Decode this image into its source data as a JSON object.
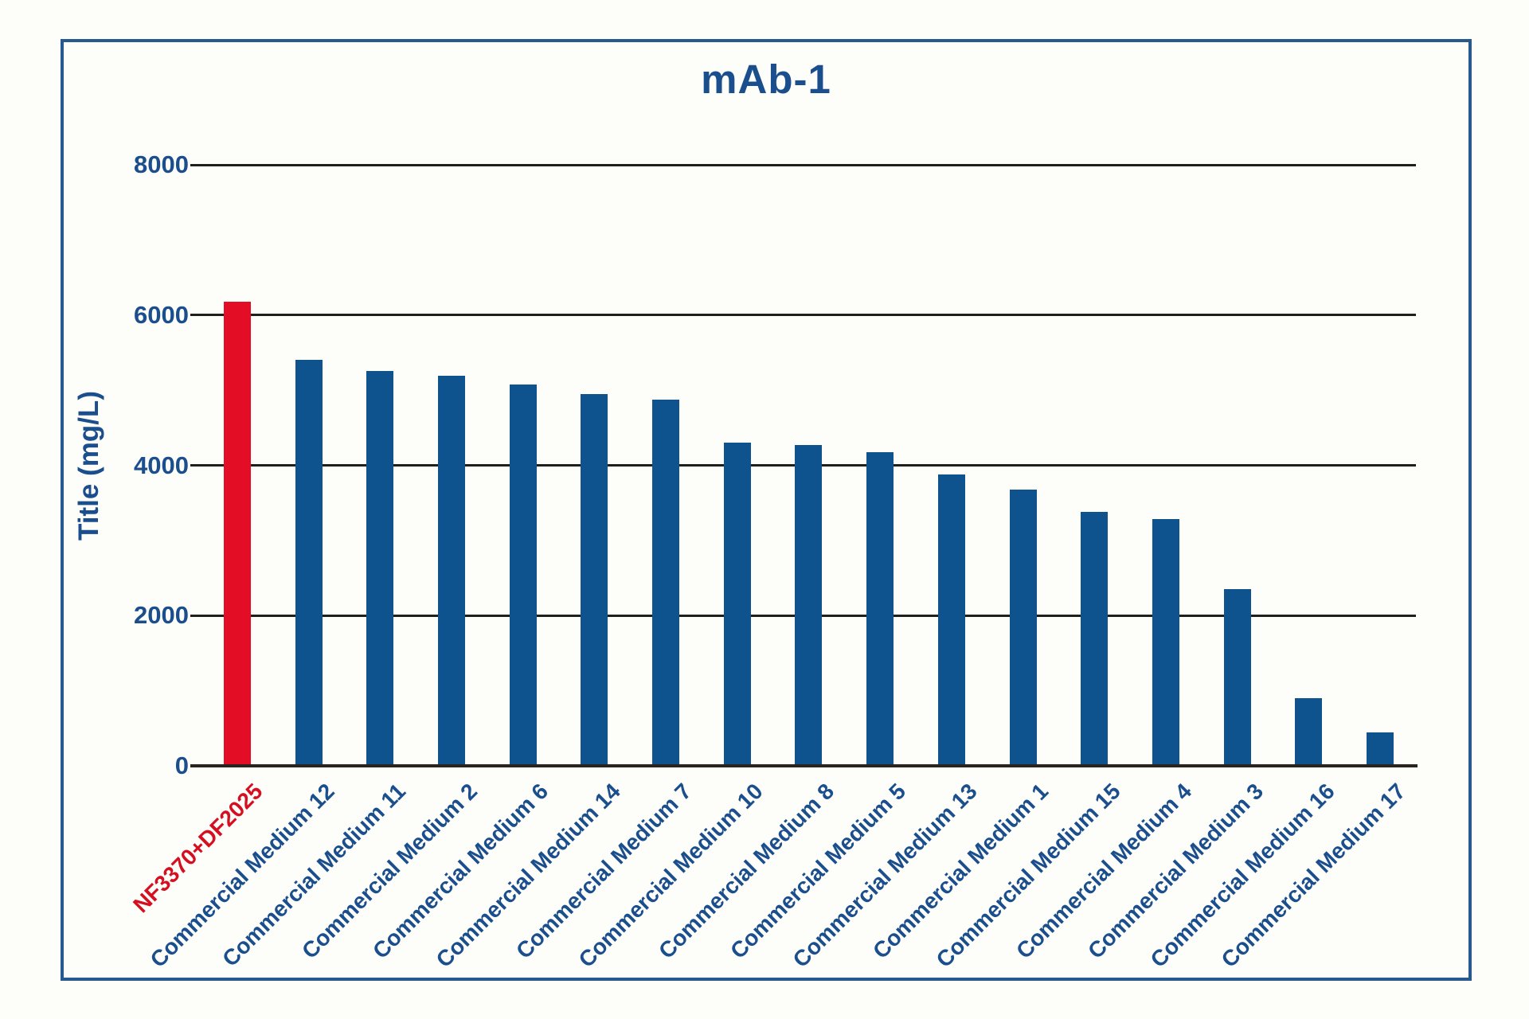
{
  "page": {
    "background": "#fdfdfa",
    "frame_border_color": "#27598f"
  },
  "chart_data": {
    "type": "bar",
    "title": "mAb-1",
    "xlabel": "",
    "ylabel": "Title (mg/L)",
    "ylim": [
      0,
      8000
    ],
    "yticks": [
      8000,
      6000,
      4000,
      2000,
      0
    ],
    "grid": "horizontal gridlines at each y tick, drawn behind bars",
    "legend_position": "none",
    "x_tick_rotation_deg": 45,
    "default_bar_color": "#0f538e",
    "highlight_bar_color": "#e30d25",
    "categories": [
      "NF3370+DF2025",
      "Commercial Medium 12",
      "Commercial Medium 11",
      "Commercial Medium 2",
      "Commercial Medium 6",
      "Commercial Medium 14",
      "Commercial Medium 7",
      "Commercial Medium 10",
      "Commercial Medium 8",
      "Commercial Medium 5",
      "Commercial Medium 13",
      "Commercial Medium 1",
      "Commercial Medium 15",
      "Commercial Medium 4",
      "Commercial Medium 3",
      "Commercial Medium 16",
      "Commercial Medium 17"
    ],
    "values": [
      6180,
      5400,
      5260,
      5190,
      5080,
      4950,
      4870,
      4300,
      4270,
      4170,
      3880,
      3680,
      3380,
      3290,
      2350,
      900,
      450
    ],
    "bars": [
      {
        "label": "NF3370+DF2025",
        "value": 6180,
        "color": "#e30d25",
        "label_color": "#d50f20"
      },
      {
        "label": "Commercial Medium 12",
        "value": 5400,
        "color": "#0f538e",
        "label_color": "#1a4e8c"
      },
      {
        "label": "Commercial Medium 11",
        "value": 5260,
        "color": "#0f538e",
        "label_color": "#1a4e8c"
      },
      {
        "label": "Commercial Medium 2",
        "value": 5190,
        "color": "#0f538e",
        "label_color": "#1a4e8c"
      },
      {
        "label": "Commercial Medium 6",
        "value": 5080,
        "color": "#0f538e",
        "label_color": "#1a4e8c"
      },
      {
        "label": "Commercial Medium 14",
        "value": 4950,
        "color": "#0f538e",
        "label_color": "#1a4e8c"
      },
      {
        "label": "Commercial Medium 7",
        "value": 4870,
        "color": "#0f538e",
        "label_color": "#1a4e8c"
      },
      {
        "label": "Commercial Medium 10",
        "value": 4300,
        "color": "#0f538e",
        "label_color": "#1a4e8c"
      },
      {
        "label": "Commercial Medium 8",
        "value": 4270,
        "color": "#0f538e",
        "label_color": "#1a4e8c"
      },
      {
        "label": "Commercial Medium 5",
        "value": 4170,
        "color": "#0f538e",
        "label_color": "#1a4e8c"
      },
      {
        "label": "Commercial Medium 13",
        "value": 3880,
        "color": "#0f538e",
        "label_color": "#1a4e8c"
      },
      {
        "label": "Commercial Medium 1",
        "value": 3680,
        "color": "#0f538e",
        "label_color": "#1a4e8c"
      },
      {
        "label": "Commercial Medium 15",
        "value": 3380,
        "color": "#0f538e",
        "label_color": "#1a4e8c"
      },
      {
        "label": "Commercial Medium 4",
        "value": 3290,
        "color": "#0f538e",
        "label_color": "#1a4e8c"
      },
      {
        "label": "Commercial Medium 3",
        "value": 2350,
        "color": "#0f538e",
        "label_color": "#1a4e8c"
      },
      {
        "label": "Commercial Medium 16",
        "value": 900,
        "color": "#0f538e",
        "label_color": "#1a4e8c"
      },
      {
        "label": "Commercial Medium 17",
        "value": 450,
        "color": "#0f538e",
        "label_color": "#1a4e8c"
      }
    ],
    "gridline_color": "#1f1f1d",
    "axis_line_color": "#28241f"
  }
}
